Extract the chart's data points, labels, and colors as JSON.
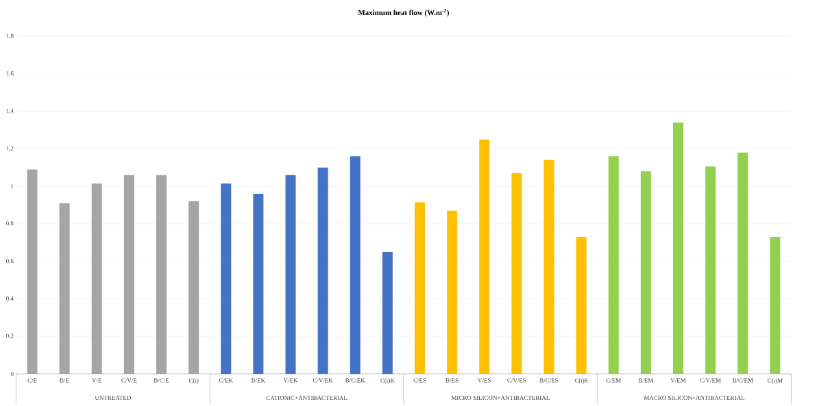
{
  "chart_data": {
    "type": "bar",
    "title": "Maximum heat flow (W.m$^{-2}$)",
    "categories": [
      "C/E",
      "B/E",
      "V/E",
      "C/V/E",
      "B/C/E",
      "C(i)",
      "C/EK",
      "B/EK",
      "V/EK",
      "C/V/EK",
      "B/C/EK",
      "C(i)K",
      "C/ES",
      "B/ES",
      "V/ES",
      "C/V/ES",
      "B/C/ES",
      "C(i)S",
      "C/EM",
      "B/EM",
      "V/EM",
      "C/V/EM",
      "B/C/EM",
      "C(i)M"
    ],
    "values": [
      1.09,
      0.91,
      1.015,
      1.06,
      1.06,
      0.92,
      1.015,
      0.96,
      1.06,
      1.1,
      1.16,
      0.65,
      0.915,
      0.87,
      1.25,
      1.07,
      1.14,
      0.73,
      1.16,
      1.08,
      1.34,
      1.105,
      1.18,
      0.73
    ],
    "colors": [
      "#a5a5a5",
      "#a5a5a5",
      "#a5a5a5",
      "#a5a5a5",
      "#a5a5a5",
      "#a5a5a5",
      "#4472c4",
      "#4472c4",
      "#4472c4",
      "#4472c4",
      "#4472c4",
      "#4472c4",
      "#ffc000",
      "#ffc000",
      "#ffc000",
      "#ffc000",
      "#ffc000",
      "#ffc000",
      "#92d050",
      "#92d050",
      "#92d050",
      "#92d050",
      "#92d050",
      "#92d050"
    ],
    "annotations": [
      "UNTREATED",
      "CATIONIC+ANTIBACTERIAL",
      "MICRO SILICON+ANTIBACTERIAL",
      "MACRO SILICON+ANTIBACTERIAL"
    ],
    "ylim": [
      0,
      1.8
    ],
    "yticks": [
      0,
      {
        "value": 0.2,
        "label": "0,2"
      },
      {
        "value": 0.4,
        "label": "0,4"
      },
      {
        "value": 0.6,
        "label": "0,6"
      },
      {
        "value": 0.8,
        "label": "0,8"
      },
      1,
      {
        "value": 1.2,
        "label": "1,2"
      },
      {
        "value": 1.4,
        "label": "1,4"
      },
      {
        "value": 1.6,
        "label": "1,6"
      },
      {
        "value": 1.8,
        "label": "1,8"
      }
    ],
    "grid": "y"
  }
}
